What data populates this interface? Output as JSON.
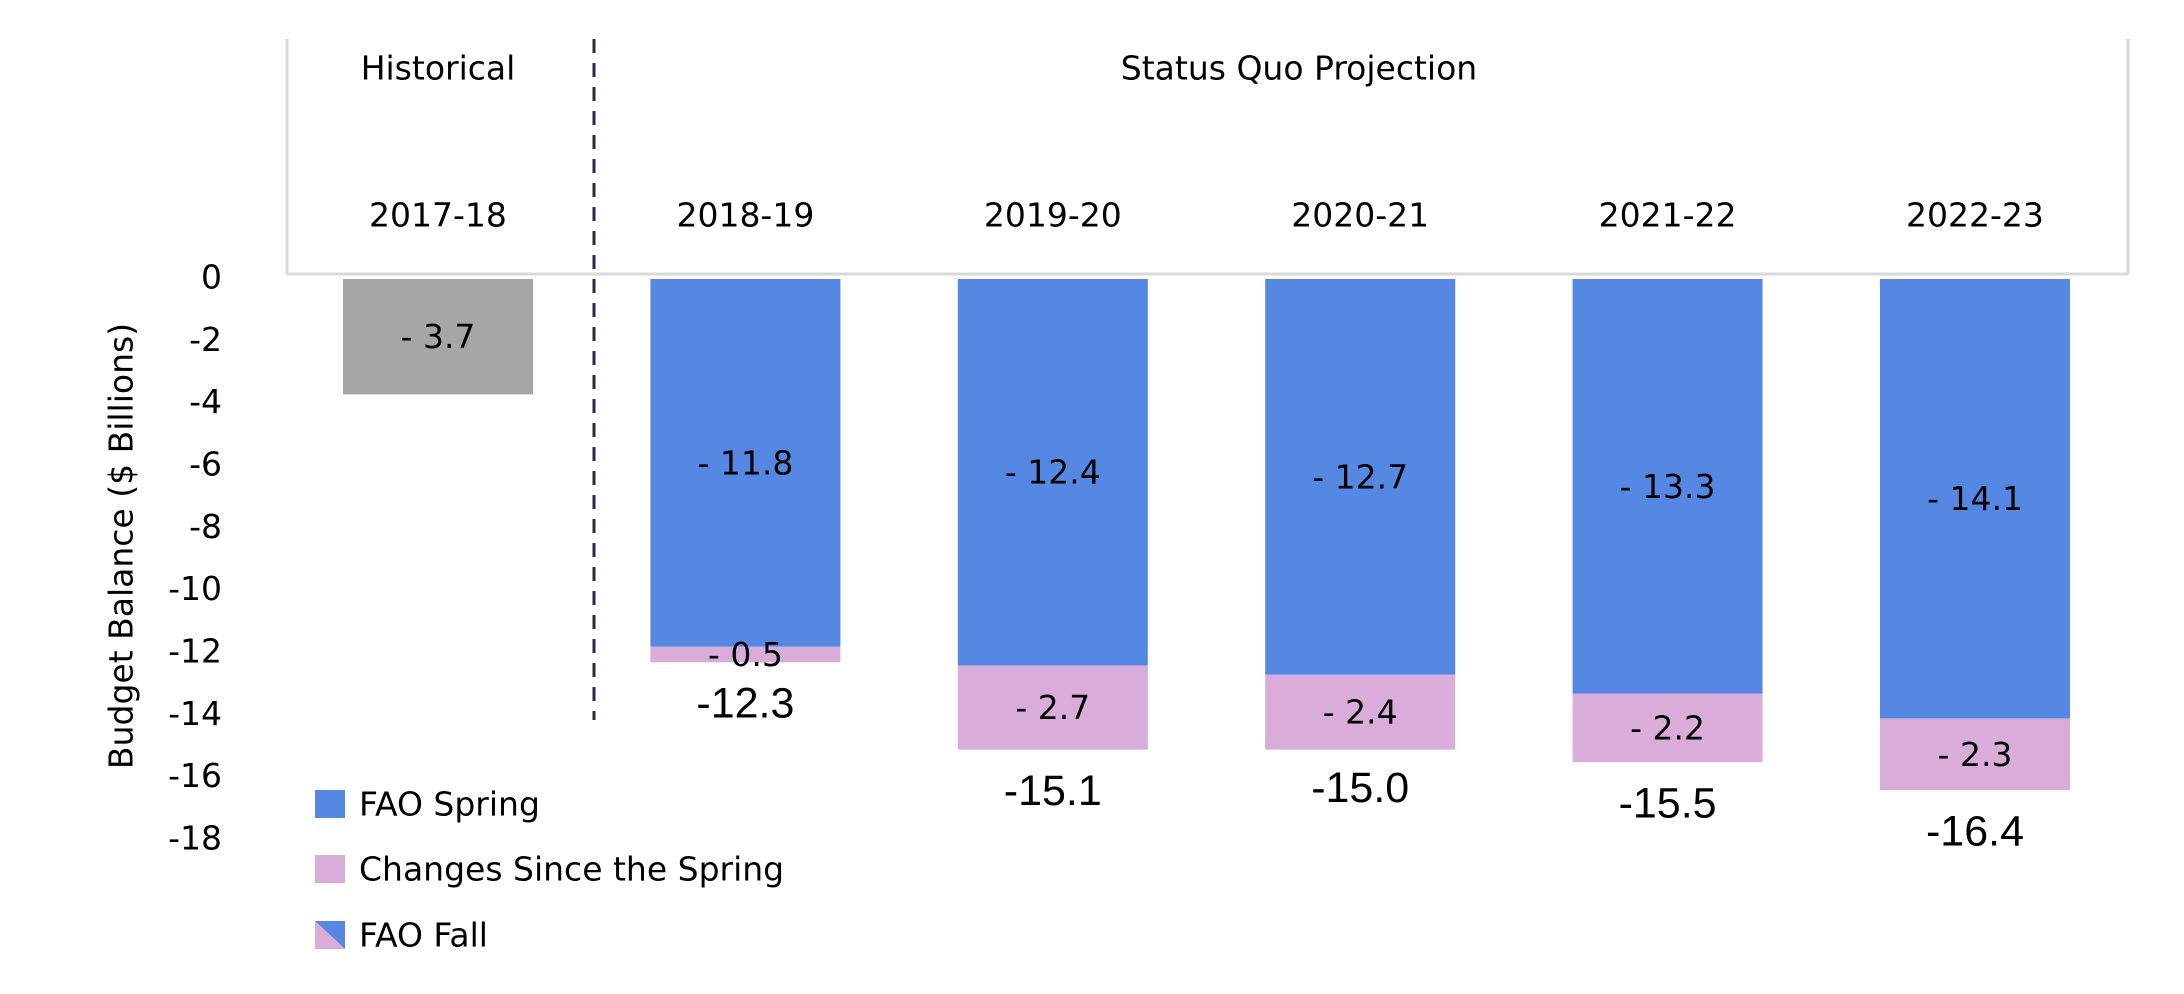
{
  "chart_data": {
    "type": "stacked_bar",
    "sections": [
      "Historical",
      "Status Quo Projection"
    ],
    "categories": [
      "2017-18",
      "2018-19",
      "2019-20",
      "2020-21",
      "2021-22",
      "2022-23"
    ],
    "y_label": "Budget Balance ($ Billions)",
    "series": [
      {
        "name": "FAO Spring",
        "color": "#5588e2",
        "point_colors": [
          "#a6a6a6",
          "#5588e2",
          "#5588e2",
          "#5588e2",
          "#5588e2",
          "#5588e2"
        ],
        "values": [
          -3.7,
          -11.8,
          -12.4,
          -12.7,
          -13.3,
          -14.1
        ],
        "value_labels": [
          "- 3.7",
          "- 11.8",
          "- 12.4",
          "- 12.7",
          "- 13.3",
          "- 14.1"
        ]
      },
      {
        "name": "Changes Since the Spring",
        "color": "#d9acd9",
        "values": [
          null,
          -0.5,
          -2.7,
          -2.4,
          -2.2,
          -2.3
        ],
        "value_labels": [
          null,
          "- 0.5",
          "- 2.7",
          "- 2.4",
          "- 2.2",
          "- 2.3"
        ]
      }
    ],
    "legend_extra": {
      "name": "FAO Fall",
      "colors": [
        "#5588e2",
        "#d9acd9"
      ]
    },
    "totals": [
      null,
      -12.3,
      -15.1,
      -15.0,
      -15.5,
      -16.4
    ],
    "total_labels": [
      null,
      "-12.3",
      "-15.1",
      "-15.0",
      "-15.5",
      "-16.4"
    ],
    "ylim": [
      0,
      -18
    ],
    "yticks": [
      0,
      -2,
      -4,
      -6,
      -8,
      -10,
      -12,
      -14,
      -16,
      -18
    ]
  }
}
